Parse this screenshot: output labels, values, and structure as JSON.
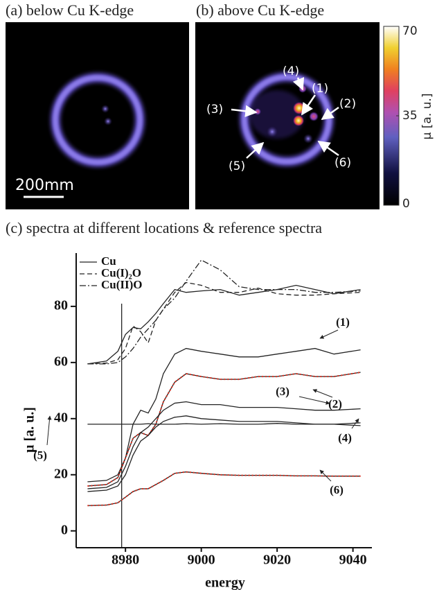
{
  "images": {
    "a_title": "(a) below Cu K-edge",
    "b_title": "(b) above Cu K-edge",
    "scale_bar": "200mm"
  },
  "colorbar": {
    "label": "μ [a. u.]",
    "lim": [
      0,
      70
    ],
    "ticks": [
      0,
      35,
      70
    ]
  },
  "chart_data": {
    "type": "line",
    "title": "(c) spectra at different locations & reference spectra",
    "xlabel": "energy",
    "ylabel": "μ [a. u.]",
    "xlim": [
      8967,
      9045
    ],
    "ylim": [
      -6,
      99
    ],
    "xticks": [
      8980,
      9000,
      9020,
      9040
    ],
    "yticks": [
      0,
      20,
      40,
      60,
      80
    ],
    "vline": 8979,
    "x": [
      8970,
      8975,
      8978,
      8980,
      8982,
      8984,
      8986,
      8988,
      8990,
      8993,
      8996,
      9000,
      9005,
      9010,
      9015,
      9020,
      9025,
      9030,
      9035,
      9042
    ],
    "series": [
      {
        "name": "Cu",
        "color": "#222222",
        "style": "solid",
        "legend": true,
        "values": [
          59.5,
          60.5,
          64,
          70,
          72.5,
          72,
          74.5,
          77.5,
          81,
          86,
          85,
          85.5,
          86,
          84,
          85,
          86,
          87.5,
          86,
          84.5,
          86
        ]
      },
      {
        "name": "Cu(I)₂O",
        "color": "#222222",
        "style": "dashed",
        "legend": true,
        "values": [
          59.5,
          59.8,
          61,
          65,
          73,
          71,
          67,
          75,
          79,
          85,
          88.5,
          87.5,
          85,
          85,
          86.5,
          84.5,
          84,
          84,
          84.5,
          85
        ]
      },
      {
        "name": "Cu(II)O",
        "color": "#222222",
        "style": "dashdot",
        "legend": true,
        "values": [
          59.5,
          59.5,
          60,
          62,
          65,
          69,
          72,
          75,
          79,
          83,
          89,
          96.5,
          93,
          87,
          86,
          86,
          86,
          85,
          85,
          85.5
        ]
      },
      {
        "name": "(1)",
        "color": "#222222",
        "style": "solid",
        "legend": false,
        "values": [
          17.5,
          18,
          20,
          26,
          38,
          43,
          42,
          47,
          56,
          63,
          65,
          64,
          63,
          62,
          62,
          63,
          64,
          65,
          63,
          64.5
        ]
      },
      {
        "name": "(2)",
        "color": "#222222",
        "style": "solid",
        "legend": false,
        "fit_color": "#e03020",
        "values": [
          16,
          16.5,
          19,
          26,
          33,
          35,
          34,
          38,
          46,
          53,
          56,
          55,
          54,
          54,
          55,
          55,
          56,
          55,
          55,
          56.5
        ]
      },
      {
        "name": "(3)",
        "color": "#222222",
        "style": "solid",
        "legend": false,
        "values": [
          15,
          15.5,
          17.5,
          23,
          30,
          35,
          37,
          40,
          43,
          45.5,
          46,
          45,
          45,
          44,
          44,
          44,
          43.5,
          43,
          43,
          43.5
        ]
      },
      {
        "name": "(4)",
        "color": "#222222",
        "style": "solid",
        "legend": false,
        "values": [
          14,
          14.5,
          16,
          20,
          27,
          32,
          34,
          37,
          39,
          40.5,
          41,
          40,
          39.5,
          39,
          39,
          39,
          38.5,
          38,
          38,
          37.5
        ]
      },
      {
        "name": "(5)",
        "color": "#222222",
        "style": "solid",
        "legend": false,
        "values": [
          38,
          38,
          38,
          38,
          38,
          38,
          38.2,
          38,
          38,
          38,
          38.2,
          38,
          38.2,
          38,
          38,
          38.3,
          38,
          38,
          38,
          38.5
        ]
      },
      {
        "name": "(6)",
        "color": "#222222",
        "style": "solid",
        "legend": false,
        "fit_color": "#e03020",
        "values": [
          9,
          9.2,
          10,
          12,
          14,
          15,
          15,
          16.5,
          18,
          20.5,
          21,
          20.5,
          20,
          19.8,
          19.8,
          19.8,
          19.6,
          19.6,
          19.5,
          19.5
        ]
      }
    ]
  }
}
